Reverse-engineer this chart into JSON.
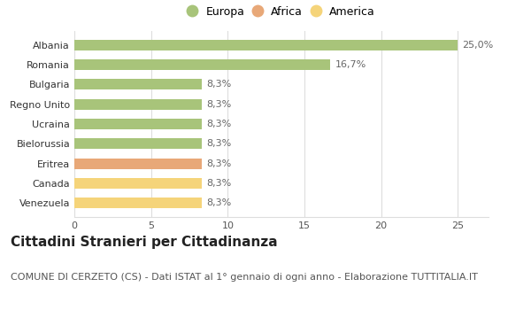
{
  "categories": [
    "Venezuela",
    "Canada",
    "Eritrea",
    "Bielorussia",
    "Ucraina",
    "Regno Unito",
    "Bulgaria",
    "Romania",
    "Albania"
  ],
  "values": [
    8.3,
    8.3,
    8.3,
    8.3,
    8.3,
    8.3,
    8.3,
    16.7,
    25.0
  ],
  "colors": [
    "#f5d47a",
    "#f5d47a",
    "#e8a878",
    "#a8c47a",
    "#a8c47a",
    "#a8c47a",
    "#a8c47a",
    "#a8c47a",
    "#a8c47a"
  ],
  "labels": [
    "8,3%",
    "8,3%",
    "8,3%",
    "8,3%",
    "8,3%",
    "8,3%",
    "8,3%",
    "16,7%",
    "25,0%"
  ],
  "legend": [
    {
      "label": "Europa",
      "color": "#a8c47a"
    },
    {
      "label": "Africa",
      "color": "#e8a878"
    },
    {
      "label": "America",
      "color": "#f5d47a"
    }
  ],
  "xlim": [
    0,
    27
  ],
  "xticks": [
    0,
    5,
    10,
    15,
    20,
    25
  ],
  "title": "Cittadini Stranieri per Cittadinanza",
  "subtitle": "COMUNE DI CERZETO (CS) - Dati ISTAT al 1° gennaio di ogni anno - Elaborazione TUTTITALIA.IT",
  "title_fontsize": 11,
  "subtitle_fontsize": 8,
  "label_fontsize": 8,
  "tick_fontsize": 8,
  "background_color": "#ffffff",
  "bar_edge_color": "none",
  "grid_color": "#dddddd"
}
